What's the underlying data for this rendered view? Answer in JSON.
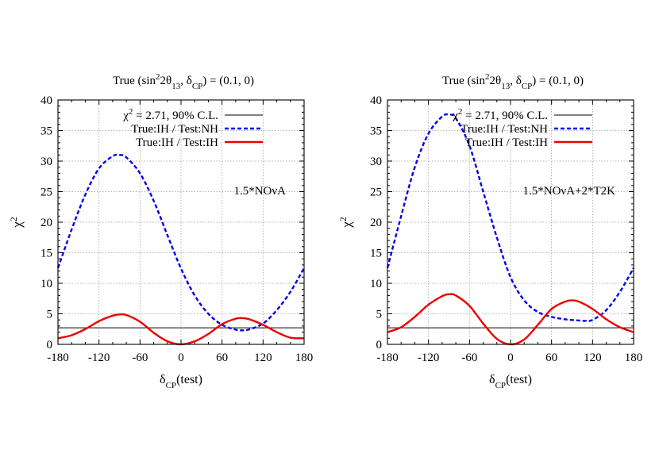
{
  "chart_data": [
    {
      "type": "line",
      "title": {
        "prefix": "True (sin",
        "sup": "2",
        "mid": "2θ",
        "sub1": "13",
        "mid2": ", δ",
        "sub2": "CP",
        "suffix": ") = (0.1, 0)"
      },
      "xlabel": {
        "main": "δ",
        "sub": "CP",
        "suffix": "(test)"
      },
      "ylabel": {
        "main": "χ",
        "sup": "2"
      },
      "xlim": [
        -180,
        180
      ],
      "ylim": [
        0,
        40
      ],
      "xticks": [
        -180,
        -120,
        -60,
        0,
        60,
        120,
        180
      ],
      "yticks": [
        0,
        5,
        10,
        15,
        20,
        25,
        30,
        35,
        40
      ],
      "grid": true,
      "legend_position": "top-right",
      "annotation": "1.5*NOνA",
      "series": [
        {
          "name": {
            "main": "χ",
            "sup": "2",
            "suffix": " = 2.71, 90% C.L."
          },
          "style": "solid-thin",
          "color": "#000000",
          "x": [
            -180,
            180
          ],
          "y": [
            2.71,
            2.71
          ]
        },
        {
          "name": {
            "main": "True:IH / Test:NH"
          },
          "style": "dashed",
          "color": "#0000ee",
          "x": [
            -180,
            -160,
            -140,
            -120,
            -100,
            -90,
            -80,
            -60,
            -40,
            -20,
            0,
            20,
            40,
            60,
            80,
            90,
            100,
            120,
            140,
            160,
            180
          ],
          "y": [
            12.5,
            18.8,
            24.5,
            28.8,
            30.8,
            31.0,
            30.6,
            28.0,
            23.5,
            17.9,
            12.4,
            8.0,
            5.0,
            3.2,
            2.4,
            2.3,
            2.45,
            3.4,
            5.6,
            8.6,
            12.5
          ]
        },
        {
          "name": {
            "main": "True:IH / Test:IH"
          },
          "style": "solid",
          "color": "#ee0000",
          "x": [
            -180,
            -160,
            -140,
            -120,
            -100,
            -90,
            -80,
            -60,
            -40,
            -20,
            0,
            20,
            40,
            60,
            80,
            90,
            100,
            120,
            140,
            160,
            180
          ],
          "y": [
            1.0,
            1.5,
            2.5,
            3.8,
            4.7,
            4.9,
            4.8,
            3.7,
            1.9,
            0.5,
            0.0,
            0.5,
            1.7,
            3.3,
            4.2,
            4.3,
            4.1,
            3.2,
            2.0,
            1.1,
            1.0
          ]
        }
      ]
    },
    {
      "type": "line",
      "title": {
        "prefix": "True (sin",
        "sup": "2",
        "mid": "2θ",
        "sub1": "13",
        "mid2": ", δ",
        "sub2": "CP",
        "suffix": ") = (0.1, 0)"
      },
      "xlabel": {
        "main": "δ",
        "sub": "CP",
        "suffix": "(test)"
      },
      "ylabel": {
        "main": "χ",
        "sup": "2"
      },
      "xlim": [
        -180,
        180
      ],
      "ylim": [
        0,
        40
      ],
      "xticks": [
        -180,
        -120,
        -60,
        0,
        60,
        120,
        180
      ],
      "yticks": [
        0,
        5,
        10,
        15,
        20,
        25,
        30,
        35,
        40
      ],
      "grid": true,
      "legend_position": "top-right",
      "annotation": "1.5*NOνA+2*T2K",
      "series": [
        {
          "name": {
            "main": "χ",
            "sup": "2",
            "suffix": " = 2.71, 90% C.L."
          },
          "style": "solid-thin",
          "color": "#000000",
          "x": [
            -180,
            180
          ],
          "y": [
            2.71,
            2.71
          ]
        },
        {
          "name": {
            "main": "True:IH / Test:NH"
          },
          "style": "dashed",
          "color": "#0000ee",
          "x": [
            -180,
            -160,
            -140,
            -120,
            -100,
            -90,
            -80,
            -60,
            -40,
            -20,
            0,
            20,
            40,
            60,
            80,
            100,
            110,
            120,
            140,
            160,
            180
          ],
          "y": [
            12.5,
            21.0,
            29.0,
            34.5,
            37.3,
            37.6,
            37.0,
            32.5,
            25.0,
            17.5,
            11.0,
            7.2,
            5.3,
            4.5,
            4.1,
            3.9,
            3.85,
            4.0,
            5.6,
            8.6,
            12.5
          ]
        },
        {
          "name": {
            "main": "True:IH / Test:IH"
          },
          "style": "solid",
          "color": "#ee0000",
          "x": [
            -180,
            -160,
            -140,
            -120,
            -100,
            -90,
            -80,
            -60,
            -40,
            -20,
            0,
            20,
            40,
            60,
            80,
            90,
            100,
            120,
            140,
            160,
            180
          ],
          "y": [
            2.0,
            2.8,
            4.5,
            6.5,
            7.9,
            8.2,
            8.0,
            6.3,
            3.4,
            0.9,
            0.0,
            0.8,
            3.2,
            5.8,
            7.0,
            7.2,
            7.0,
            5.8,
            4.1,
            2.8,
            2.0
          ]
        }
      ]
    }
  ]
}
